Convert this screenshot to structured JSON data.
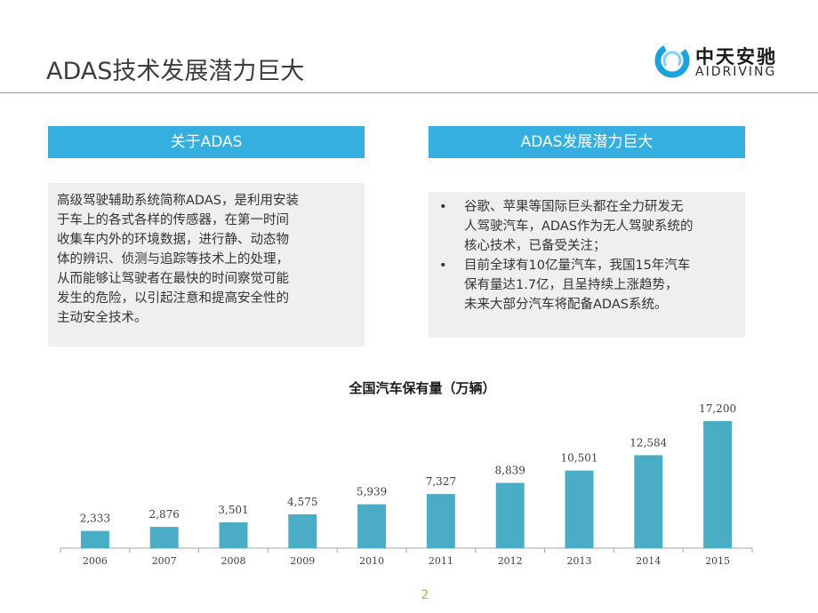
{
  "slide": {
    "title": "ADAS技术发展潜力巨大",
    "page_number": "2"
  },
  "logo": {
    "name_cn": "中天安驰",
    "name_en": "AIDRIVING",
    "color": "#1aa3dd"
  },
  "left_panel": {
    "header": "关于ADAS",
    "lines": [
      "高级驾驶辅助系统简称ADAS，是利用安装",
      "于车上的各式各样的传感器，在第一时间",
      "收集车内外的环境数据，进行静、动态物",
      "体的辨识、侦测与追踪等技术上的处理，",
      "从而能够让驾驶者在最快的时间察觉可能",
      "发生的危险，以引起注意和提高安全性的",
      "主动安全技术。"
    ]
  },
  "right_panel": {
    "header": "ADAS发展潜力巨大",
    "bullet_symbol": "•",
    "bullets": [
      {
        "lines": [
          "谷歌、苹果等国际巨头都在全力研发无",
          "人驾驶汽车，ADAS作为无人驾驶系统的",
          "核心技术，已备受关注；"
        ]
      },
      {
        "lines": [
          "目前全球有10亿量汽车，我国15年汽车",
          "保有量达1.7亿，且呈持续上涨趋势，",
          "未来大部分汽车将配备ADAS系统。"
        ]
      }
    ]
  },
  "colors": {
    "header_blue": "#35aee0",
    "panel_bg": "#efefef",
    "bar": "#4bacc6",
    "page_number": "#8cc63e"
  },
  "chart_data": {
    "type": "bar",
    "title": "全国汽车保有量（万辆）",
    "categories": [
      "2006",
      "2007",
      "2008",
      "2009",
      "2010",
      "2011",
      "2012",
      "2013",
      "2014",
      "2015"
    ],
    "values": [
      2333,
      2876,
      3501,
      4575,
      5939,
      7327,
      8839,
      10501,
      12584,
      17200
    ],
    "value_labels": [
      "2,333",
      "2,876",
      "3,501",
      "4,575",
      "5,939",
      "7,327",
      "8,839",
      "10,501",
      "12,584",
      "17,200"
    ],
    "xlabel": "",
    "ylabel": "",
    "ylim": [
      0,
      17200
    ],
    "grid": false,
    "legend": "none"
  }
}
